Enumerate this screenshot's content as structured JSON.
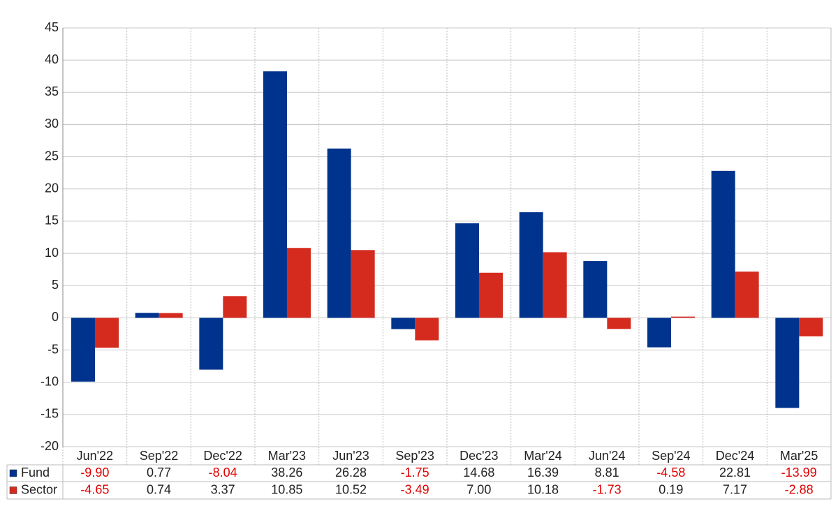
{
  "chart_data": {
    "type": "bar",
    "categories": [
      "Jun'22",
      "Sep'22",
      "Dec'22",
      "Mar'23",
      "Jun'23",
      "Sep'23",
      "Dec'23",
      "Mar'24",
      "Jun'24",
      "Sep'24",
      "Dec'24",
      "Mar'25"
    ],
    "series": [
      {
        "name": "Fund",
        "color": "#00338d",
        "values": [
          -9.9,
          0.77,
          -8.04,
          38.26,
          26.28,
          -1.75,
          14.68,
          16.39,
          8.81,
          -4.58,
          22.81,
          -13.99
        ],
        "value_labels": [
          "-9.90",
          "0.77",
          "-8.04",
          "38.26",
          "26.28",
          "-1.75",
          "14.68",
          "16.39",
          "8.81",
          "-4.58",
          "22.81",
          "-13.99"
        ]
      },
      {
        "name": "Sector",
        "color": "#d52b1e",
        "values": [
          -4.65,
          0.74,
          3.37,
          10.85,
          10.52,
          -3.49,
          7.0,
          10.18,
          -1.73,
          0.19,
          7.17,
          -2.88
        ],
        "value_labels": [
          "-4.65",
          "0.74",
          "3.37",
          "10.85",
          "10.52",
          "-3.49",
          "7.00",
          "10.18",
          "-1.73",
          "0.19",
          "7.17",
          "-2.88"
        ]
      }
    ],
    "ylim": [
      -20,
      45
    ],
    "yticks": [
      -20,
      -15,
      -10,
      -5,
      0,
      5,
      10,
      15,
      20,
      25,
      30,
      35,
      40,
      45
    ],
    "grid": true,
    "negative_label_color": "#e00000"
  }
}
